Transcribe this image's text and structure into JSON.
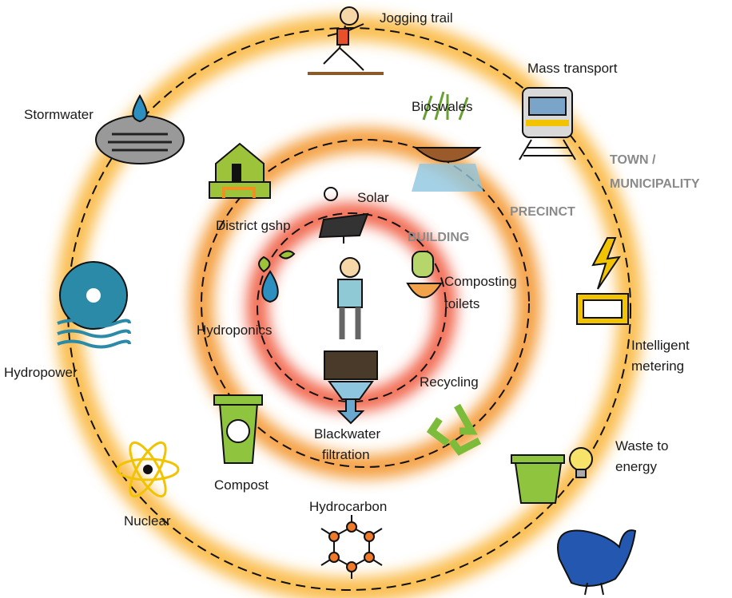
{
  "ring_labels": {
    "town": [
      "TOWN /",
      "MUNICIPALITY"
    ],
    "precinct": "PRECINCT",
    "building": "BUILDING"
  },
  "nodes": {
    "jogging_trail": [
      "Jogging trail"
    ],
    "mass_transport": [
      "Mass transport"
    ],
    "stormwater": [
      "Stormwater"
    ],
    "bioswales": [
      "Bioswales"
    ],
    "district_gshp": [
      "District gshp"
    ],
    "solar": [
      "Solar"
    ],
    "composting_toilets": [
      "Composting",
      "toilets"
    ],
    "hydroponics": [
      "Hydroponics"
    ],
    "intelligent_metering": [
      "Intelligent",
      "metering"
    ],
    "hydropower": [
      "Hydropower"
    ],
    "recycling": [
      "Recycling"
    ],
    "blackwater_filtration": [
      "Blackwater",
      "filtration"
    ],
    "waste_to_energy": [
      "Waste to",
      "energy"
    ],
    "compost": [
      "Compost"
    ],
    "nuclear": [
      "Nuclear"
    ],
    "hydrocarbon": [
      "Hydrocarbon"
    ]
  }
}
